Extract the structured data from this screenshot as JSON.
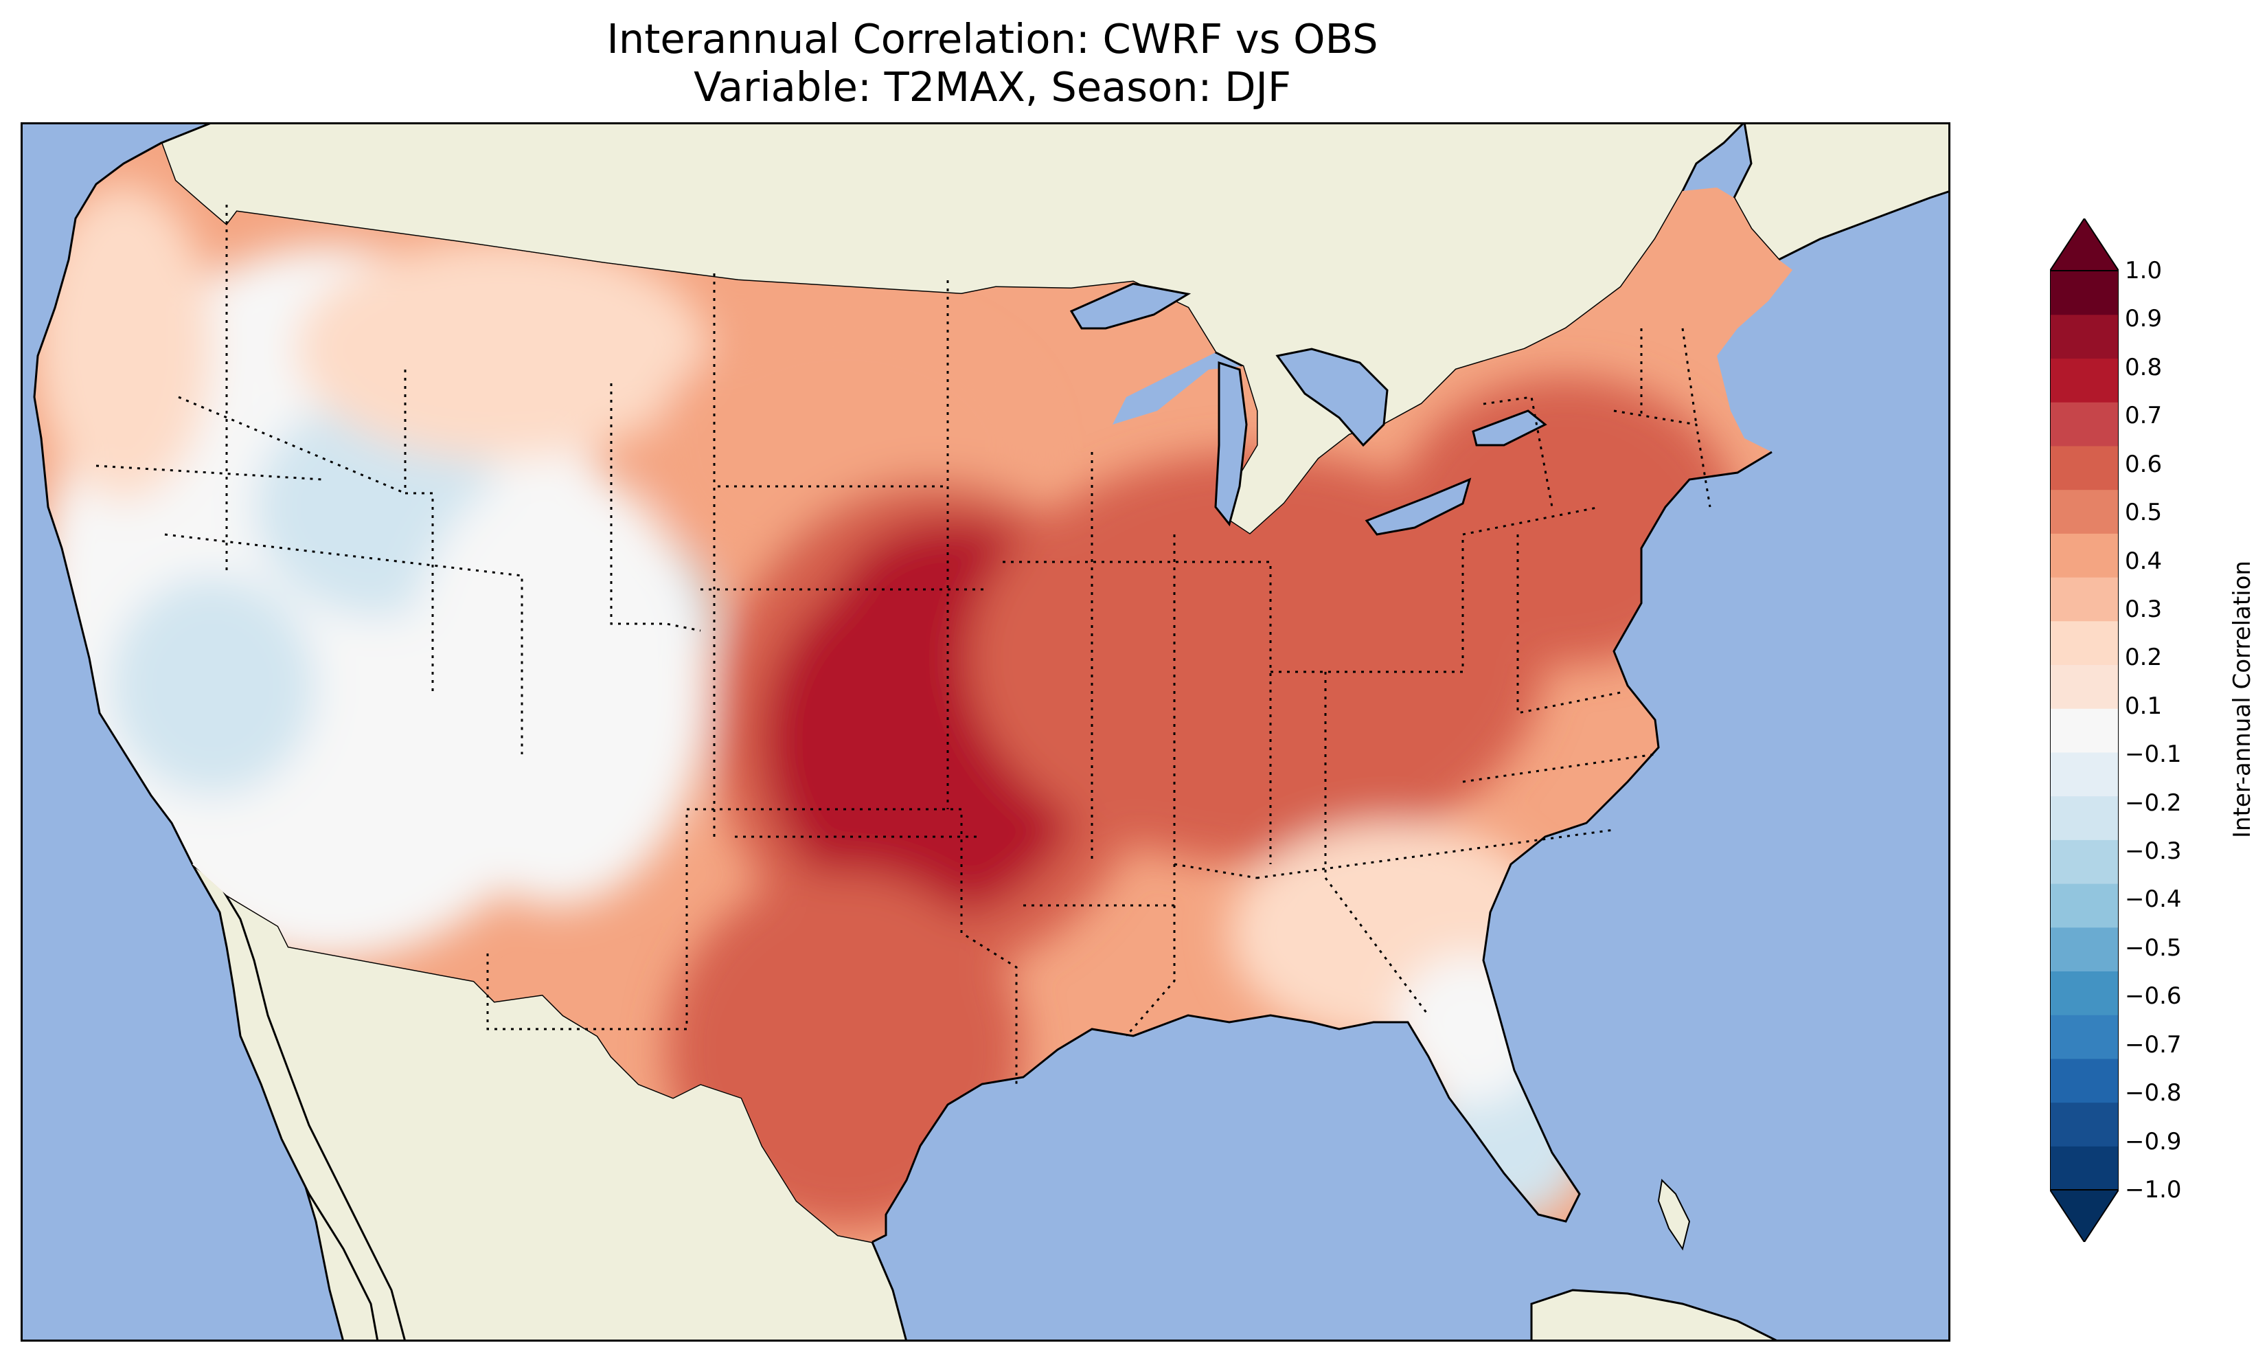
{
  "title": {
    "line1": "Interannual Correlation: CWRF vs OBS",
    "line2": "Variable: T2MAX, Season: DJF"
  },
  "map": {
    "region": "Contiguous United States",
    "colors": {
      "ocean": "#96b5e2",
      "land": "#efefdc",
      "border": "#000000"
    }
  },
  "colorbar": {
    "label": "Inter-annual Correlation",
    "ticks": [
      "1.0",
      "0.9",
      "0.8",
      "0.7",
      "0.6",
      "0.5",
      "0.4",
      "0.3",
      "0.2",
      "0.1",
      "−0.1",
      "−0.2",
      "−0.3",
      "−0.4",
      "−0.5",
      "−0.6",
      "−0.7",
      "−0.8",
      "−0.9",
      "−1.0"
    ],
    "extend": "both",
    "colors": [
      "#0b3c75",
      "#174f8f",
      "#2166ac",
      "#3581be",
      "#4393c3",
      "#6aabd1",
      "#92c5de",
      "#b1d5e7",
      "#d1e5f0",
      "#e4eef5",
      "#f7f7f7",
      "#fbe3d6",
      "#fddbc7",
      "#f9bda1",
      "#f4a582",
      "#e58266",
      "#d6604d",
      "#c6454a",
      "#b2182b",
      "#951028",
      "#67001f"
    ],
    "neg_extend_color": "#053061",
    "pos_extend_color": "#67001f"
  },
  "chart_data": {
    "type": "heatmap",
    "title": "Interannual Correlation: CWRF vs OBS",
    "subtitle": "Variable: T2MAX, Season: DJF",
    "colorbar_label": "Inter-annual Correlation",
    "range": [
      -1.0,
      1.0
    ],
    "levels": [
      -1.0,
      -0.9,
      -0.8,
      -0.7,
      -0.6,
      -0.5,
      -0.4,
      -0.3,
      -0.2,
      -0.1,
      0.1,
      0.2,
      0.3,
      0.4,
      0.5,
      0.6,
      0.7,
      0.8,
      0.9,
      1.0
    ],
    "regions": [
      {
        "region": "Pacific Northwest coast",
        "correlation": 0.25
      },
      {
        "region": "Idaho / Oregon interior",
        "correlation": -0.15
      },
      {
        "region": "Nevada / Utah",
        "correlation": -0.1
      },
      {
        "region": "California",
        "correlation": 0.0
      },
      {
        "region": "Arizona",
        "correlation": -0.05
      },
      {
        "region": "Colorado",
        "correlation": -0.2
      },
      {
        "region": "New Mexico",
        "correlation": 0.15
      },
      {
        "region": "Montana / Wyoming",
        "correlation": 0.3
      },
      {
        "region": "Northern Plains",
        "correlation": 0.45
      },
      {
        "region": "Nebraska / Kansas",
        "correlation": 0.8
      },
      {
        "region": "Oklahoma / north Texas",
        "correlation": 0.75
      },
      {
        "region": "Iowa / Missouri",
        "correlation": 0.7
      },
      {
        "region": "Texas",
        "correlation": 0.55
      },
      {
        "region": "Great Lakes / Ohio Valley",
        "correlation": 0.6
      },
      {
        "region": "Northeast",
        "correlation": 0.55
      },
      {
        "region": "Mid-Atlantic",
        "correlation": 0.45
      },
      {
        "region": "Gulf Coast",
        "correlation": 0.4
      },
      {
        "region": "Southeast",
        "correlation": 0.25
      },
      {
        "region": "Florida",
        "correlation": -0.1
      }
    ]
  }
}
